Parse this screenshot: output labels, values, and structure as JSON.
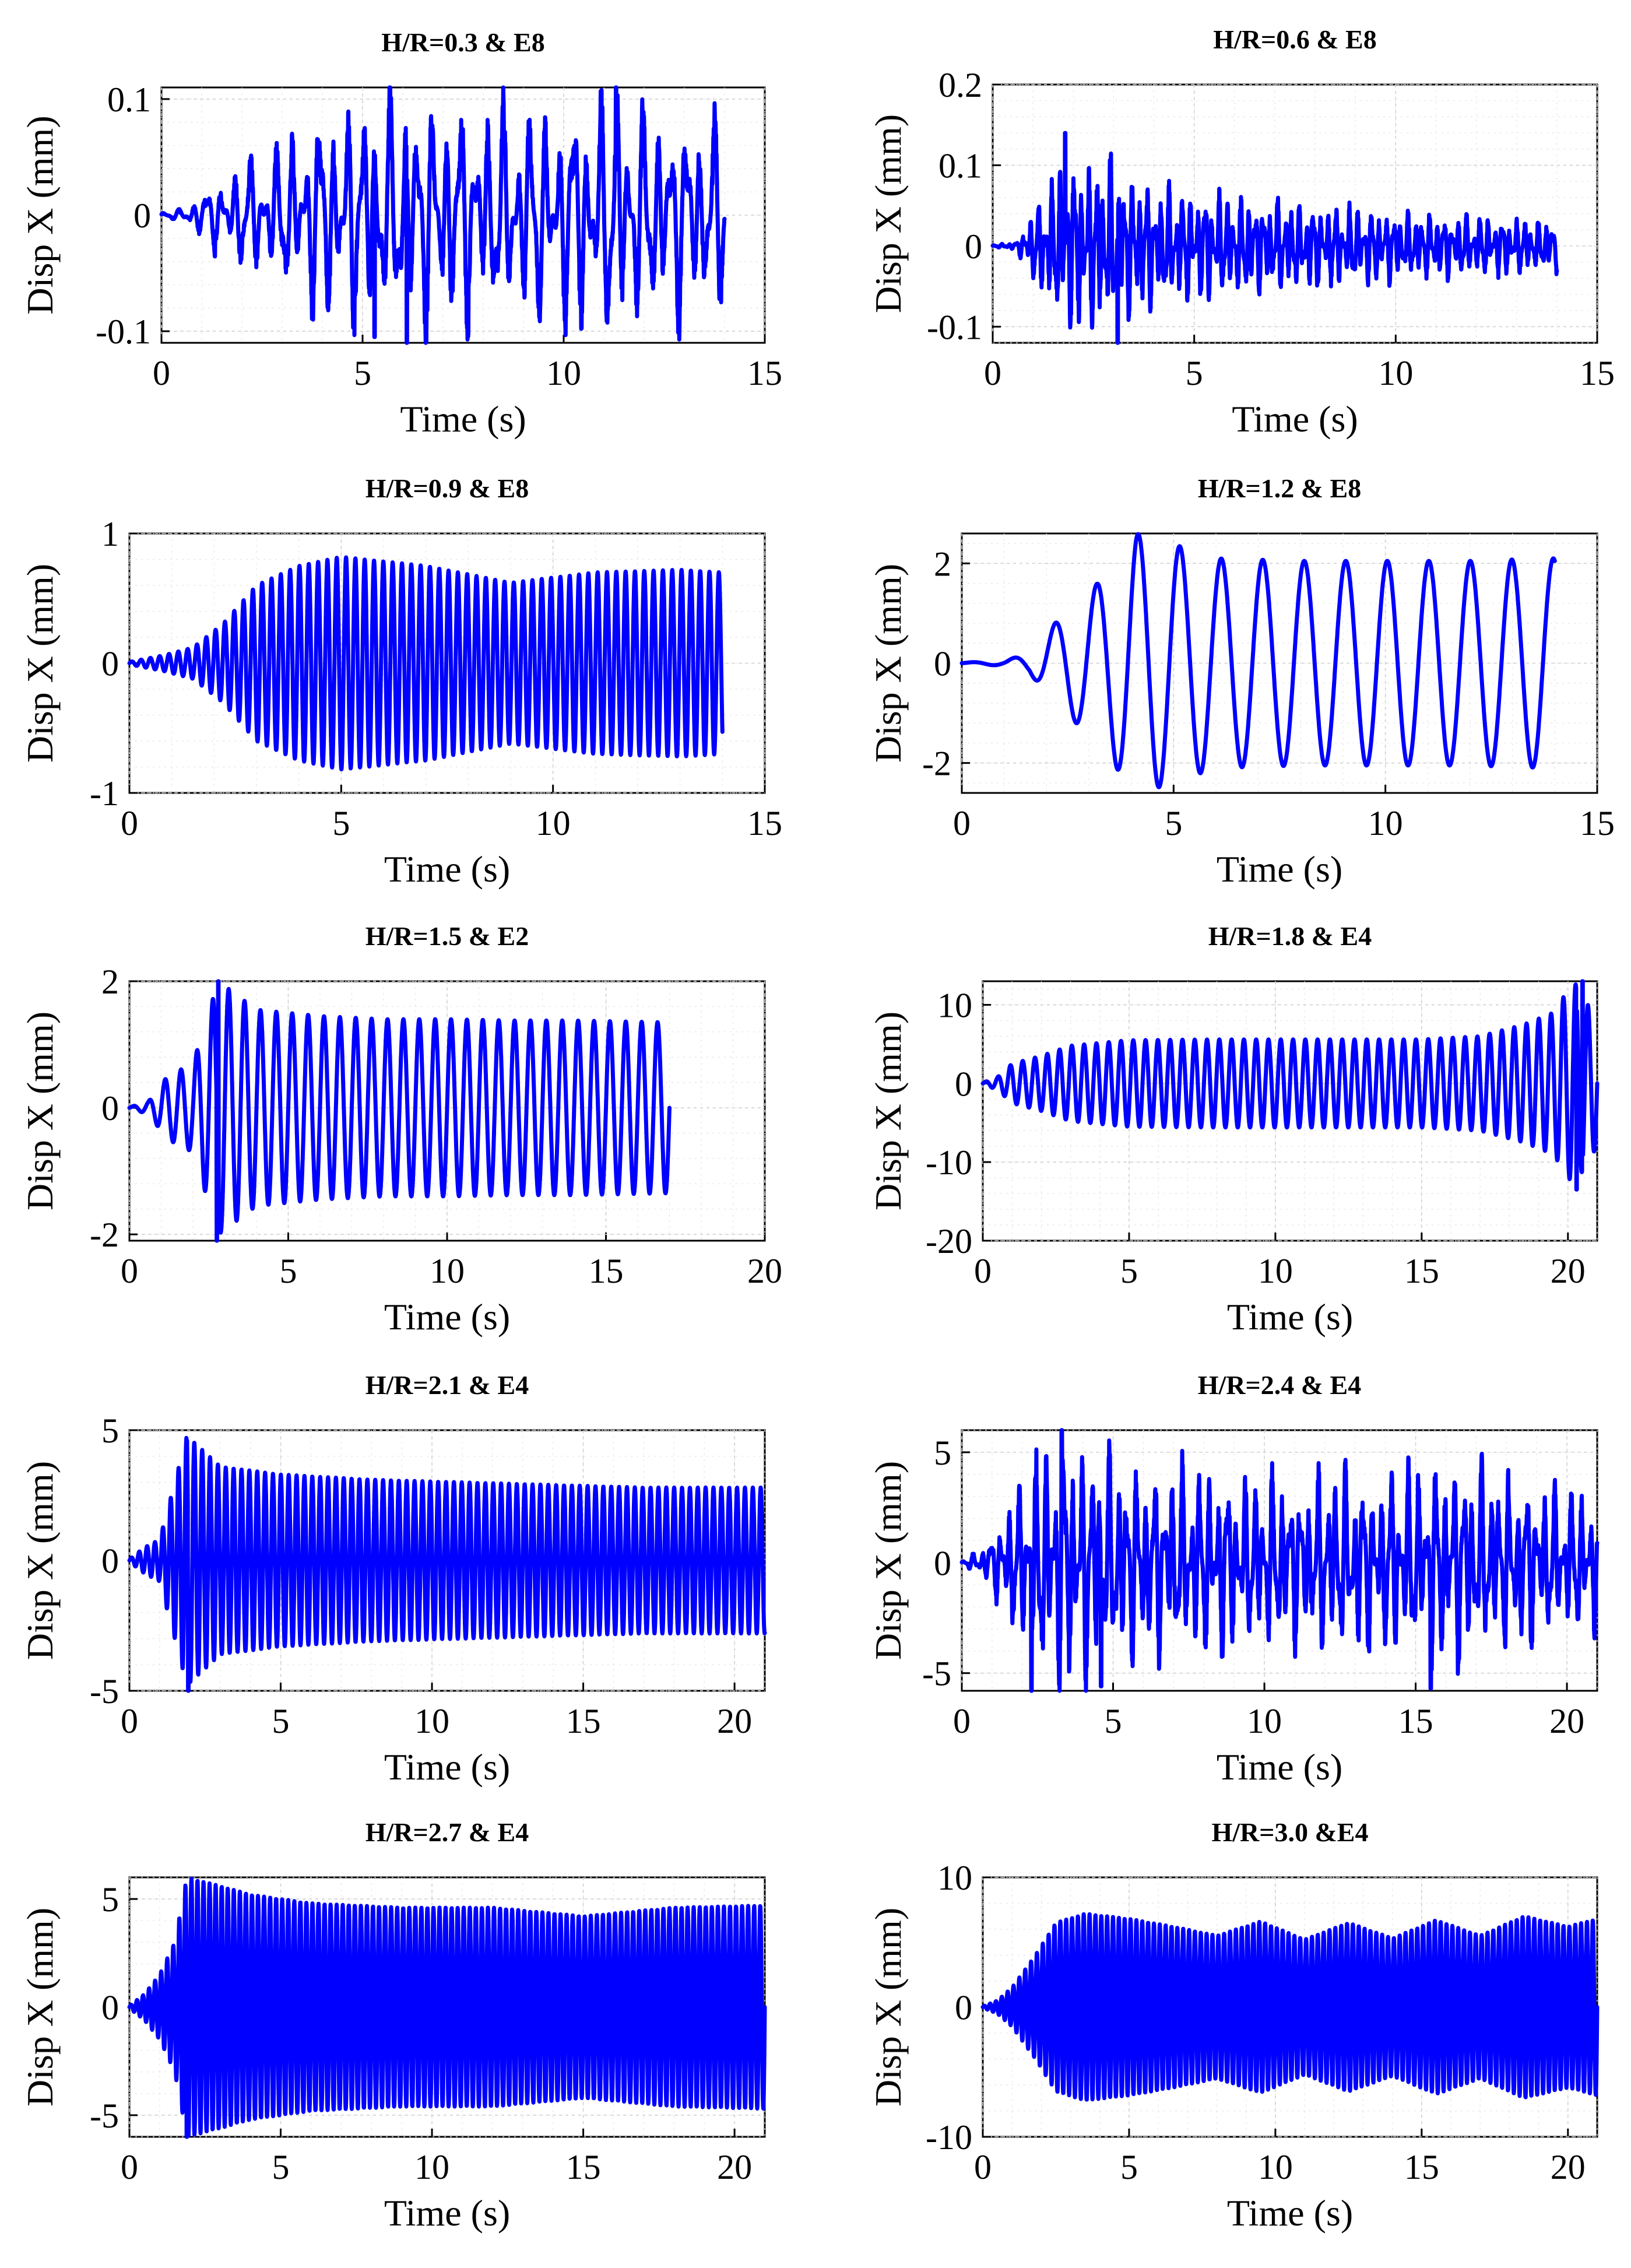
{
  "chart_data": [
    {
      "type": "line",
      "title": "H/R=0.3 & E8",
      "xlabel": "Time (s)",
      "ylabel": "Disp X (mm)",
      "xlim": [
        0,
        15
      ],
      "ylim": [
        -0.11,
        0.11
      ],
      "xticks": [
        0,
        5,
        10,
        15
      ],
      "xtick_labels": [
        "0",
        "5",
        "10",
        "15"
      ],
      "yticks": [
        -0.1,
        0,
        0.1
      ],
      "ytick_labels": [
        "-0.1",
        "0",
        "0.1"
      ],
      "series": [
        {
          "name": "Disp X",
          "color": "#0000ff",
          "t_end": 14,
          "envelope_t": [
            0,
            0.5,
            1,
            2,
            3,
            4,
            6,
            8,
            10,
            11.3,
            12,
            14
          ],
          "envelope_a": [
            0.002,
            0.005,
            0.02,
            0.045,
            0.06,
            0.09,
            0.1,
            0.09,
            0.09,
            0.11,
            0.09,
            0.08
          ],
          "peaks": [
            {
              "t": 6.1,
              "v": -0.11
            },
            {
              "t": 11.3,
              "v": 0.11
            },
            {
              "t": 5.3,
              "v": -0.105
            }
          ],
          "period": 0.35,
          "style": "random"
        }
      ]
    },
    {
      "type": "line",
      "title": "H/R=0.6 & E8",
      "xlabel": "Time (s)",
      "ylabel": "Disp X (mm)",
      "xlim": [
        0,
        15
      ],
      "ylim": [
        -0.12,
        0.2
      ],
      "xticks": [
        0,
        5,
        10,
        15
      ],
      "xtick_labels": [
        "0",
        "5",
        "10",
        "15"
      ],
      "yticks": [
        -0.1,
        0,
        0.1,
        0.2
      ],
      "ytick_labels": [
        "-0.1",
        "0",
        "0.1",
        "0.2"
      ],
      "series": [
        {
          "name": "Disp X",
          "color": "#0000ff",
          "t_end": 14,
          "envelope_t": [
            0,
            0.6,
            1.2,
            1.8,
            3,
            4,
            6,
            8,
            10,
            12,
            14
          ],
          "envelope_a": [
            0.001,
            0.005,
            0.06,
            0.1,
            0.1,
            0.07,
            0.06,
            0.05,
            0.04,
            0.035,
            0.03
          ],
          "peaks": [
            {
              "t": 1.8,
              "v": 0.14
            },
            {
              "t": 3.1,
              "v": -0.12
            }
          ],
          "period": 0.18,
          "style": "random"
        }
      ]
    },
    {
      "type": "line",
      "title": "H/R=0.9 & E8",
      "xlabel": "Time (s)",
      "ylabel": "Disp X (mm)",
      "xlim": [
        0,
        15
      ],
      "ylim": [
        -1,
        1
      ],
      "xticks": [
        0,
        5,
        10,
        15
      ],
      "xtick_labels": [
        "0",
        "5",
        "10",
        "15"
      ],
      "yticks": [
        -1,
        0,
        1
      ],
      "ytick_labels": [
        "-1",
        "0",
        "1"
      ],
      "series": [
        {
          "name": "Disp X",
          "color": "#0000ff",
          "t_end": 14,
          "envelope_t": [
            0,
            0.8,
            1.5,
            2.2,
            3,
            4,
            5,
            7,
            9,
            11,
            13,
            14
          ],
          "envelope_a": [
            0.01,
            0.06,
            0.12,
            0.3,
            0.6,
            0.75,
            0.82,
            0.75,
            0.62,
            0.7,
            0.72,
            0.7
          ],
          "peaks": [],
          "period": 0.22,
          "style": "sine"
        }
      ]
    },
    {
      "type": "line",
      "title": "H/R=1.2 & E8",
      "xlabel": "Time (s)",
      "ylabel": "Disp X (mm)",
      "xlim": [
        0,
        15
      ],
      "ylim": [
        -2.6,
        2.6
      ],
      "xticks": [
        0,
        5,
        10,
        15
      ],
      "xtick_labels": [
        "0",
        "5",
        "10",
        "15"
      ],
      "yticks": [
        -2,
        0,
        2
      ],
      "ytick_labels": [
        "-2",
        "0",
        "2"
      ],
      "series": [
        {
          "name": "Disp X",
          "color": "#0000ff",
          "t_end": 14,
          "envelope_t": [
            0,
            1,
            1.6,
            2.2,
            3.2,
            4.1,
            4.6,
            6,
            8,
            10,
            12,
            13.8
          ],
          "envelope_a": [
            0.01,
            0.05,
            0.2,
            0.8,
            1.6,
            2.6,
            2.5,
            2.1,
            2.05,
            2.05,
            2.05,
            2.1
          ],
          "peaks": [],
          "period": 0.98,
          "style": "sine"
        }
      ]
    },
    {
      "type": "line",
      "title": "H/R=1.5 & E2",
      "xlabel": "Time (s)",
      "ylabel": "Disp X (mm)",
      "xlim": [
        0,
        20
      ],
      "ylim": [
        -2.1,
        2
      ],
      "xticks": [
        0,
        5,
        10,
        15,
        20
      ],
      "xtick_labels": [
        "0",
        "5",
        "10",
        "15",
        "20"
      ],
      "yticks": [
        -2,
        0,
        2
      ],
      "ytick_labels": [
        "-2",
        "0",
        "2"
      ],
      "series": [
        {
          "name": "Disp X",
          "color": "#0000ff",
          "t_end": 17,
          "envelope_t": [
            0,
            0.6,
            1.2,
            2,
            2.8,
            4,
            6,
            8,
            10,
            12,
            14,
            17
          ],
          "envelope_a": [
            0.01,
            0.1,
            0.5,
            0.7,
            2,
            1.55,
            1.45,
            1.4,
            1.4,
            1.38,
            1.38,
            1.35
          ],
          "peaks": [
            {
              "t": 2.8,
              "v": 2
            },
            {
              "t": 2.75,
              "v": -2.1
            }
          ],
          "period": 0.5,
          "style": "sine"
        }
      ]
    },
    {
      "type": "line",
      "title": "H/R=1.8 & E4",
      "xlabel": "Time (s)",
      "ylabel": "Disp X (mm)",
      "xlim": [
        0,
        21
      ],
      "ylim": [
        -20,
        13
      ],
      "xticks": [
        0,
        5,
        10,
        15,
        20
      ],
      "xtick_labels": [
        "0",
        "5",
        "10",
        "15",
        "20"
      ],
      "yticks": [
        -20,
        -10,
        0,
        10
      ],
      "ytick_labels": [
        "-20",
        "-10",
        "0",
        "10"
      ],
      "series": [
        {
          "name": "Disp X",
          "color": "#0000ff",
          "t_end": 21,
          "envelope_t": [
            0,
            0.5,
            1,
            2,
            3,
            5,
            8,
            12,
            15,
            17,
            18.5,
            19.5,
            20.2,
            21
          ],
          "envelope_a": [
            0.1,
            0.8,
            2.5,
            3.5,
            4.8,
            5.5,
            5.6,
            5.6,
            5.6,
            6,
            7.5,
            9,
            13,
            8
          ],
          "peaks": [
            {
              "t": 20.5,
              "v": 13
            },
            {
              "t": 20.3,
              "v": -13.5
            }
          ],
          "period": 0.42,
          "style": "sine"
        }
      ]
    },
    {
      "type": "line",
      "title": "H/R=2.1 & E4",
      "xlabel": "Time (s)",
      "ylabel": "Disp X (mm)",
      "xlim": [
        0,
        21
      ],
      "ylim": [
        -5,
        5
      ],
      "xticks": [
        0,
        5,
        10,
        15,
        20
      ],
      "xtick_labels": [
        "0",
        "5",
        "10",
        "15",
        "20"
      ],
      "yticks": [
        -5,
        0,
        5
      ],
      "ytick_labels": [
        "-5",
        "0",
        "5"
      ],
      "series": [
        {
          "name": "Disp X",
          "color": "#0000ff",
          "t_end": 21,
          "envelope_t": [
            0,
            0.5,
            1,
            1.5,
            1.9,
            3,
            5,
            8,
            11,
            14,
            17,
            21
          ],
          "envelope_a": [
            0.05,
            0.5,
            0.8,
            3,
            4.8,
            3.6,
            3.3,
            3.1,
            3,
            2.9,
            2.8,
            2.8
          ],
          "peaks": [
            {
              "t": 1.9,
              "v": 4.6
            },
            {
              "t": 1.95,
              "v": -5
            }
          ],
          "period": 0.26,
          "style": "sine"
        }
      ]
    },
    {
      "type": "line",
      "title": "H/R=2.4 & E4",
      "xlabel": "Time (s)",
      "ylabel": "Disp X (mm)",
      "xlim": [
        0,
        21
      ],
      "ylim": [
        -5.8,
        6
      ],
      "xticks": [
        0,
        5,
        10,
        15,
        20
      ],
      "xtick_labels": [
        "0",
        "5",
        "10",
        "15",
        "20"
      ],
      "yticks": [
        -5,
        0,
        5
      ],
      "ytick_labels": [
        "-5",
        "0",
        "5"
      ],
      "series": [
        {
          "name": "Disp X",
          "color": "#0000ff",
          "t_end": 21,
          "envelope_t": [
            0,
            0.8,
            1.5,
            2.2,
            3.3,
            5,
            8,
            11,
            14,
            16,
            18,
            21
          ],
          "envelope_a": [
            0.05,
            0.8,
            2.5,
            4.5,
            5.5,
            4.5,
            4,
            3.8,
            4,
            4.5,
            3.8,
            3
          ],
          "peaks": [
            {
              "t": 3.3,
              "v": 6
            },
            {
              "t": 2.3,
              "v": -5.8
            },
            {
              "t": 4.6,
              "v": -5.6
            },
            {
              "t": 15.5,
              "v": -5.7
            }
          ],
          "period": 0.3,
          "style": "random"
        }
      ]
    },
    {
      "type": "line",
      "title": "H/R=2.7 & E4",
      "xlabel": "Time (s)",
      "ylabel": "Disp X (mm)",
      "xlim": [
        0,
        21
      ],
      "ylim": [
        -6,
        6
      ],
      "xticks": [
        0,
        5,
        10,
        15,
        20
      ],
      "xtick_labels": [
        "0",
        "5",
        "10",
        "15",
        "20"
      ],
      "yticks": [
        -5,
        0,
        5
      ],
      "ytick_labels": [
        "-5",
        "0",
        "5"
      ],
      "series": [
        {
          "name": "Disp X",
          "color": "#0000ff",
          "t_end": 21,
          "envelope_t": [
            0,
            0.5,
            1,
            1.5,
            1.9,
            3,
            4,
            6,
            9,
            12,
            15,
            18,
            21
          ],
          "envelope_a": [
            0.05,
            0.6,
            1.5,
            3,
            6,
            5.6,
            5.2,
            4.8,
            4.6,
            4.6,
            4.2,
            4.6,
            4.7
          ],
          "peaks": [
            {
              "t": 1.9,
              "v": 6
            },
            {
              "t": 1.9,
              "v": -6
            }
          ],
          "period": 0.2,
          "style": "sine"
        }
      ]
    },
    {
      "type": "line",
      "title": "H/R=3.0 &E4",
      "xlabel": "Time (s)",
      "ylabel": "Disp X (mm)",
      "xlim": [
        0,
        21
      ],
      "ylim": [
        -10,
        10
      ],
      "xticks": [
        0,
        5,
        10,
        15,
        20
      ],
      "xtick_labels": [
        "0",
        "5",
        "10",
        "15",
        "20"
      ],
      "yticks": [
        -10,
        0,
        10
      ],
      "ytick_labels": [
        "-10",
        "0",
        "10"
      ],
      "series": [
        {
          "name": "Disp X",
          "color": "#0000ff",
          "t_end": 21,
          "envelope_t": [
            0,
            0.5,
            1,
            1.8,
            2.5,
            3.5,
            5,
            6.5,
            8,
            9.5,
            11,
            12.5,
            14,
            15.5,
            17,
            18.5,
            20,
            21
          ],
          "envelope_a": [
            0.05,
            0.5,
            1.5,
            4,
            6.5,
            7.2,
            6.8,
            6.2,
            5.5,
            6.6,
            5.2,
            6.5,
            5.3,
            6.7,
            5.5,
            7,
            6.2,
            6.8
          ],
          "peaks": [],
          "period": 0.2,
          "style": "sine"
        }
      ]
    }
  ]
}
